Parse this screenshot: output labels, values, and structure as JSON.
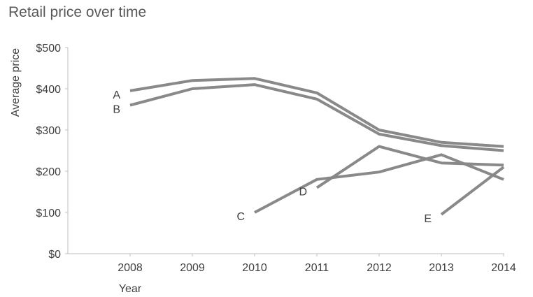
{
  "chart_data": {
    "type": "line",
    "title": "Retail price over time",
    "xlabel": "Year",
    "ylabel": "Average price",
    "x": [
      2008,
      2009,
      2010,
      2011,
      2012,
      2013,
      2014
    ],
    "x_tick_labels": [
      "2008",
      "2009",
      "2010",
      "2011",
      "2012",
      "2013",
      "2014"
    ],
    "y_tick_labels": [
      "$0",
      "$100",
      "$200",
      "$300",
      "$400",
      "$500"
    ],
    "ylim": [
      0,
      500
    ],
    "grid": false,
    "legend": "none (series labeled directly)",
    "colors": {
      "series": "#898989",
      "axis": "#bfbfbf",
      "text": "#404040",
      "title": "#595959"
    },
    "series": [
      {
        "name": "A",
        "points": [
          [
            2008,
            395
          ],
          [
            2009,
            420
          ],
          [
            2010,
            425
          ],
          [
            2011,
            390
          ],
          [
            2012,
            300
          ],
          [
            2013,
            270
          ],
          [
            2014,
            260
          ]
        ]
      },
      {
        "name": "B",
        "points": [
          [
            2008,
            360
          ],
          [
            2009,
            400
          ],
          [
            2010,
            410
          ],
          [
            2011,
            375
          ],
          [
            2012,
            290
          ],
          [
            2013,
            262
          ],
          [
            2014,
            250
          ]
        ]
      },
      {
        "name": "C",
        "points": [
          [
            2010,
            100
          ],
          [
            2011,
            180
          ],
          [
            2012,
            198
          ],
          [
            2013,
            240
          ],
          [
            2014,
            180
          ]
        ]
      },
      {
        "name": "D",
        "points": [
          [
            2011,
            160
          ],
          [
            2012,
            260
          ],
          [
            2013,
            220
          ],
          [
            2014,
            215
          ]
        ]
      },
      {
        "name": "E",
        "points": [
          [
            2013,
            95
          ],
          [
            2014,
            210
          ]
        ]
      }
    ]
  }
}
